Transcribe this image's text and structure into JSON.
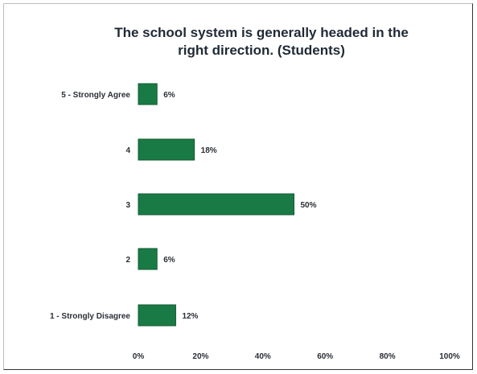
{
  "chart_data": {
    "type": "bar",
    "orientation": "horizontal",
    "title": "The school system is generally headed in the\nright direction. (Students)",
    "categories": [
      "5 - Strongly Agree",
      "4",
      "3",
      "2",
      "1 - Strongly Disagree"
    ],
    "values": [
      6,
      18,
      50,
      6,
      12
    ],
    "value_labels": [
      "6%",
      "18%",
      "50%",
      "6%",
      "12%"
    ],
    "xlim": [
      0,
      100
    ],
    "x_ticks": [
      0,
      20,
      40,
      60,
      80,
      100
    ],
    "x_tick_labels": [
      "0%",
      "20%",
      "40%",
      "60%",
      "80%",
      "100%"
    ],
    "grid": false,
    "legend": "none",
    "bar_color": "#1a7a45"
  }
}
